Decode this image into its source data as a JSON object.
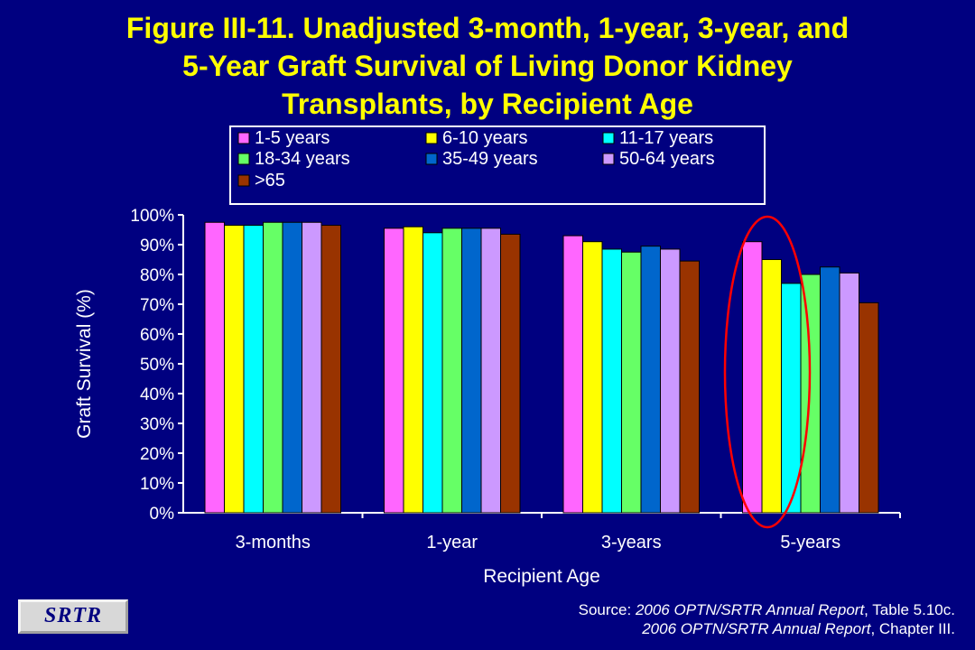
{
  "title": {
    "lines": [
      "Figure III-11. Unadjusted 3-month, 1-year, 3-year, and",
      "5-Year Graft Survival of Living Donor Kidney",
      "Transplants, by Recipient Age"
    ]
  },
  "chart_data": {
    "type": "bar",
    "xlabel": "Recipient Age",
    "ylabel": "Graft Survival (%)",
    "ylim": [
      0,
      100
    ],
    "yticks": [
      "0%",
      "10%",
      "20%",
      "30%",
      "40%",
      "50%",
      "60%",
      "70%",
      "80%",
      "90%",
      "100%"
    ],
    "categories": [
      "3-months",
      "1-year",
      "3-years",
      "5-years"
    ],
    "legend_position": "top",
    "grid": false,
    "series": [
      {
        "name": "1-5 years",
        "color": "#ff66ff",
        "values": [
          97.5,
          95.5,
          93,
          91
        ]
      },
      {
        "name": "6-10 years",
        "color": "#ffff00",
        "values": [
          96.5,
          96,
          91,
          85
        ]
      },
      {
        "name": "11-17 years",
        "color": "#00ffff",
        "values": [
          96.5,
          94,
          88.5,
          77
        ]
      },
      {
        "name": "18-34 years",
        "color": "#66ff66",
        "values": [
          97.5,
          95.5,
          87.5,
          80
        ]
      },
      {
        "name": "35-49 years",
        "color": "#0066cc",
        "values": [
          97.5,
          95.5,
          89.5,
          82.5
        ]
      },
      {
        "name": "50-64 years",
        "color": "#cc99ff",
        "values": [
          97.5,
          95.5,
          88.5,
          80.5
        ]
      },
      {
        "name": ">65",
        "color": "#993300",
        "values": [
          96.5,
          93.5,
          84.5,
          70.5
        ]
      }
    ],
    "annotation": "red ellipse highlighting 5-years group"
  },
  "source": {
    "prefix": "Source: ",
    "report_italic": "2006 OPTN/SRTR Annual Report",
    "line1_suffix": ", Table 5.10c.",
    "line2_suffix": ", Chapter III."
  },
  "logo": {
    "text": "SRTR"
  }
}
